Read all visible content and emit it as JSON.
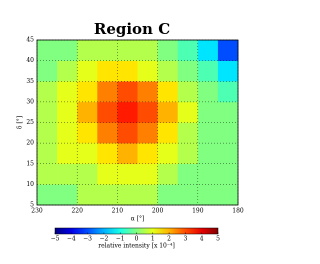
{
  "chart_data": {
    "type": "heatmap",
    "title": "Region C",
    "x_label": "α [°]",
    "y_label": "δ [°]",
    "colorbar_label": "relative intensity [x 10⁻⁴]",
    "xlim": [
      230,
      180
    ],
    "xticks": [
      230,
      220,
      210,
      200,
      190,
      180
    ],
    "ylim": [
      5,
      45
    ],
    "yticks": [
      5,
      10,
      15,
      20,
      25,
      30,
      35,
      40,
      45
    ],
    "xbins": [
      230,
      225,
      220,
      215,
      210,
      205,
      200,
      195,
      190,
      185,
      180
    ],
    "ybins": [
      5,
      10,
      15,
      20,
      25,
      30,
      35,
      40,
      45
    ],
    "z": [
      [
        0,
        0,
        0.5,
        0.5,
        0.5,
        0.5,
        0,
        0,
        0,
        0
      ],
      [
        0.5,
        0.5,
        0.5,
        1,
        1,
        1,
        0.5,
        0,
        0,
        0
      ],
      [
        0.5,
        1,
        1,
        1.5,
        2,
        1.5,
        1,
        0.5,
        0,
        0
      ],
      [
        0.5,
        1,
        1.5,
        2.5,
        3,
        2.5,
        1.5,
        0.5,
        0,
        0
      ],
      [
        0.5,
        1,
        2,
        3,
        3.5,
        3,
        2,
        1,
        0,
        0
      ],
      [
        0.5,
        1,
        1.5,
        2.5,
        3,
        2.5,
        1.5,
        0.5,
        0,
        -0.5
      ],
      [
        0,
        0.5,
        1,
        1.5,
        1.5,
        1,
        0.5,
        0,
        -0.5,
        -1.5
      ],
      [
        0,
        0,
        0.5,
        0.5,
        0.5,
        0.5,
        0,
        -0.5,
        -1.5,
        -3
      ]
    ],
    "clim": [
      -5,
      5
    ],
    "cticks": [
      {
        "value": -5,
        "label": "−5"
      },
      {
        "value": -4,
        "label": "−4"
      },
      {
        "value": -3,
        "label": "−3"
      },
      {
        "value": -2,
        "label": "−2"
      },
      {
        "value": -1,
        "label": "−1"
      },
      0,
      1,
      2,
      3,
      4,
      5
    ],
    "colormap": "jet",
    "grid": true
  }
}
